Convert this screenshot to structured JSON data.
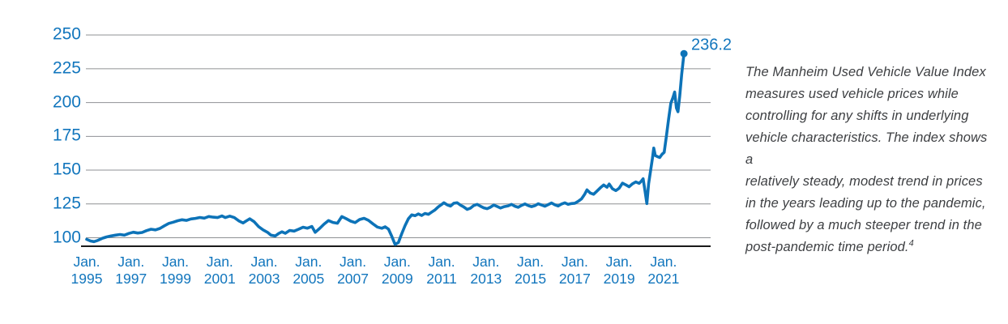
{
  "colors": {
    "line_blue": "#0d73b8",
    "label_blue": "#1276bd",
    "gridline_gray": "#8f9194",
    "axis_black": "#1a1a1a",
    "text_gray": "#3d3f42"
  },
  "chart_data": {
    "type": "line",
    "title": "",
    "xlabel": "",
    "ylabel": "",
    "x_unit": "years since Jan. 1995",
    "ylim": [
      94,
      256
    ],
    "grid": "horizontal",
    "legend": "none",
    "y_ticks": [
      100,
      125,
      150,
      175,
      200,
      225,
      250
    ],
    "x_ticks": [
      {
        "month": "Jan.",
        "year": "1995",
        "t": 0
      },
      {
        "month": "Jan.",
        "year": "1997",
        "t": 2
      },
      {
        "month": "Jan.",
        "year": "1999",
        "t": 4
      },
      {
        "month": "Jan.",
        "year": "2001",
        "t": 6
      },
      {
        "month": "Jan.",
        "year": "2003",
        "t": 8
      },
      {
        "month": "Jan.",
        "year": "2005",
        "t": 10
      },
      {
        "month": "Jan.",
        "year": "2007",
        "t": 12
      },
      {
        "month": "Jan.",
        "year": "2009",
        "t": 14
      },
      {
        "month": "Jan.",
        "year": "2011",
        "t": 16
      },
      {
        "month": "Jan.",
        "year": "2013",
        "t": 18
      },
      {
        "month": "Jan.",
        "year": "2015",
        "t": 20
      },
      {
        "month": "Jan.",
        "year": "2017",
        "t": 22
      },
      {
        "month": "Jan.",
        "year": "2019",
        "t": 24
      },
      {
        "month": "Jan.",
        "year": "2021",
        "t": 26
      }
    ],
    "end_label": "236.2",
    "series": [
      {
        "name": "Manheim Used Vehicle Value Index",
        "points": [
          [
            0,
            98.8
          ],
          [
            0.17,
            97.6
          ],
          [
            0.33,
            97.1
          ],
          [
            0.5,
            98
          ],
          [
            0.7,
            99.6
          ],
          [
            0.9,
            100.6
          ],
          [
            1.1,
            101.3
          ],
          [
            1.3,
            101.9
          ],
          [
            1.5,
            102.4
          ],
          [
            1.7,
            101.9
          ],
          [
            1.9,
            103.2
          ],
          [
            2.1,
            104.1
          ],
          [
            2.3,
            103.5
          ],
          [
            2.5,
            103.9
          ],
          [
            2.7,
            105.3
          ],
          [
            2.9,
            106.3
          ],
          [
            3.1,
            105.8
          ],
          [
            3.3,
            106.9
          ],
          [
            3.5,
            108.8
          ],
          [
            3.7,
            110.6
          ],
          [
            3.9,
            111.5
          ],
          [
            4.1,
            112.6
          ],
          [
            4.3,
            113.3
          ],
          [
            4.5,
            112.8
          ],
          [
            4.7,
            113.9
          ],
          [
            4.9,
            114.3
          ],
          [
            5.1,
            115
          ],
          [
            5.3,
            114.5
          ],
          [
            5.5,
            115.7
          ],
          [
            5.7,
            115.2
          ],
          [
            5.9,
            114.9
          ],
          [
            6.1,
            116.1
          ],
          [
            6.25,
            114.9
          ],
          [
            6.45,
            116
          ],
          [
            6.65,
            114.9
          ],
          [
            6.85,
            112.5
          ],
          [
            7.05,
            110.9
          ],
          [
            7.2,
            112.5
          ],
          [
            7.35,
            114
          ],
          [
            7.55,
            111.8
          ],
          [
            7.75,
            108.2
          ],
          [
            7.95,
            105.8
          ],
          [
            8.15,
            104
          ],
          [
            8.3,
            101.9
          ],
          [
            8.5,
            101.3
          ],
          [
            8.65,
            103.1
          ],
          [
            8.8,
            104.4
          ],
          [
            8.95,
            103.3
          ],
          [
            9.15,
            105.4
          ],
          [
            9.35,
            104.9
          ],
          [
            9.55,
            106.3
          ],
          [
            9.75,
            107.8
          ],
          [
            9.95,
            107.1
          ],
          [
            10.15,
            108.3
          ],
          [
            10.3,
            104
          ],
          [
            10.5,
            106.9
          ],
          [
            10.7,
            110.1
          ],
          [
            10.9,
            112.7
          ],
          [
            11.1,
            111.3
          ],
          [
            11.3,
            110.7
          ],
          [
            11.5,
            115.7
          ],
          [
            11.7,
            114.1
          ],
          [
            11.9,
            112.3
          ],
          [
            12.1,
            111.2
          ],
          [
            12.3,
            113.5
          ],
          [
            12.5,
            114.4
          ],
          [
            12.7,
            112.9
          ],
          [
            12.9,
            110.3
          ],
          [
            13.1,
            107.9
          ],
          [
            13.3,
            107
          ],
          [
            13.45,
            108.1
          ],
          [
            13.6,
            106.4
          ],
          [
            13.75,
            101
          ],
          [
            13.9,
            95
          ],
          [
            14.05,
            96.5
          ],
          [
            14.2,
            103
          ],
          [
            14.35,
            109
          ],
          [
            14.5,
            114
          ],
          [
            14.65,
            116.9
          ],
          [
            14.8,
            116.3
          ],
          [
            14.95,
            117.6
          ],
          [
            15.1,
            116.5
          ],
          [
            15.25,
            118
          ],
          [
            15.4,
            117.3
          ],
          [
            15.55,
            119
          ],
          [
            15.7,
            120.6
          ],
          [
            15.85,
            122.9
          ],
          [
            16,
            124.6
          ],
          [
            16.1,
            125.9
          ],
          [
            16.25,
            124.3
          ],
          [
            16.4,
            123.4
          ],
          [
            16.55,
            125.5
          ],
          [
            16.7,
            125.9
          ],
          [
            16.85,
            124.1
          ],
          [
            17,
            122.7
          ],
          [
            17.15,
            121
          ],
          [
            17.3,
            121.9
          ],
          [
            17.45,
            123.9
          ],
          [
            17.6,
            124.7
          ],
          [
            17.75,
            123.3
          ],
          [
            17.9,
            122.1
          ],
          [
            18.05,
            121.5
          ],
          [
            18.2,
            122.6
          ],
          [
            18.35,
            124.2
          ],
          [
            18.5,
            123.1
          ],
          [
            18.65,
            122
          ],
          [
            18.8,
            122.9
          ],
          [
            19,
            123.6
          ],
          [
            19.15,
            124.7
          ],
          [
            19.3,
            123.3
          ],
          [
            19.45,
            122.5
          ],
          [
            19.6,
            123.9
          ],
          [
            19.75,
            125
          ],
          [
            19.9,
            123.8
          ],
          [
            20.05,
            123
          ],
          [
            20.2,
            123.7
          ],
          [
            20.35,
            125.1
          ],
          [
            20.5,
            124.2
          ],
          [
            20.65,
            123.3
          ],
          [
            20.8,
            124.5
          ],
          [
            20.95,
            125.7
          ],
          [
            21.1,
            124.4
          ],
          [
            21.25,
            123.5
          ],
          [
            21.4,
            124.9
          ],
          [
            21.55,
            125.8
          ],
          [
            21.7,
            124.7
          ],
          [
            21.85,
            125.3
          ],
          [
            22,
            125.5
          ],
          [
            22.15,
            126.9
          ],
          [
            22.3,
            128.7
          ],
          [
            22.45,
            132.3
          ],
          [
            22.55,
            135.4
          ],
          [
            22.7,
            133.1
          ],
          [
            22.85,
            132.2
          ],
          [
            23,
            134.5
          ],
          [
            23.15,
            136.9
          ],
          [
            23.3,
            139
          ],
          [
            23.45,
            137.3
          ],
          [
            23.55,
            139.7
          ],
          [
            23.7,
            136.2
          ],
          [
            23.85,
            134.9
          ],
          [
            24,
            136.6
          ],
          [
            24.15,
            140.4
          ],
          [
            24.3,
            139.1
          ],
          [
            24.45,
            137.7
          ],
          [
            24.6,
            139.9
          ],
          [
            24.75,
            141.3
          ],
          [
            24.9,
            140.2
          ],
          [
            25,
            141.9
          ],
          [
            25.08,
            143.6
          ],
          [
            25.17,
            134
          ],
          [
            25.25,
            125.3
          ],
          [
            25.33,
            140
          ],
          [
            25.42,
            150
          ],
          [
            25.5,
            158.8
          ],
          [
            25.56,
            166.3
          ],
          [
            25.63,
            160.8
          ],
          [
            25.73,
            160
          ],
          [
            25.83,
            159.4
          ],
          [
            25.93,
            161.7
          ],
          [
            26.03,
            163.2
          ],
          [
            26.13,
            175
          ],
          [
            26.23,
            188
          ],
          [
            26.33,
            199.5
          ],
          [
            26.42,
            203.5
          ],
          [
            26.5,
            207.8
          ],
          [
            26.58,
            196
          ],
          [
            26.65,
            193.2
          ],
          [
            26.73,
            205
          ],
          [
            26.82,
            221
          ],
          [
            26.92,
            236.2
          ]
        ]
      }
    ]
  },
  "description": {
    "lines": [
      "The Manheim Used Vehicle Value Index",
      "measures used vehicle prices while",
      "controlling for any shifts in underlying",
      "vehicle characteristics. The index shows a",
      "relatively steady, modest trend in prices",
      "in the years leading up to the pandemic,",
      "followed by a much steeper trend in the"
    ],
    "last_line": "post-pandemic time period.",
    "footnote_marker": "4"
  }
}
